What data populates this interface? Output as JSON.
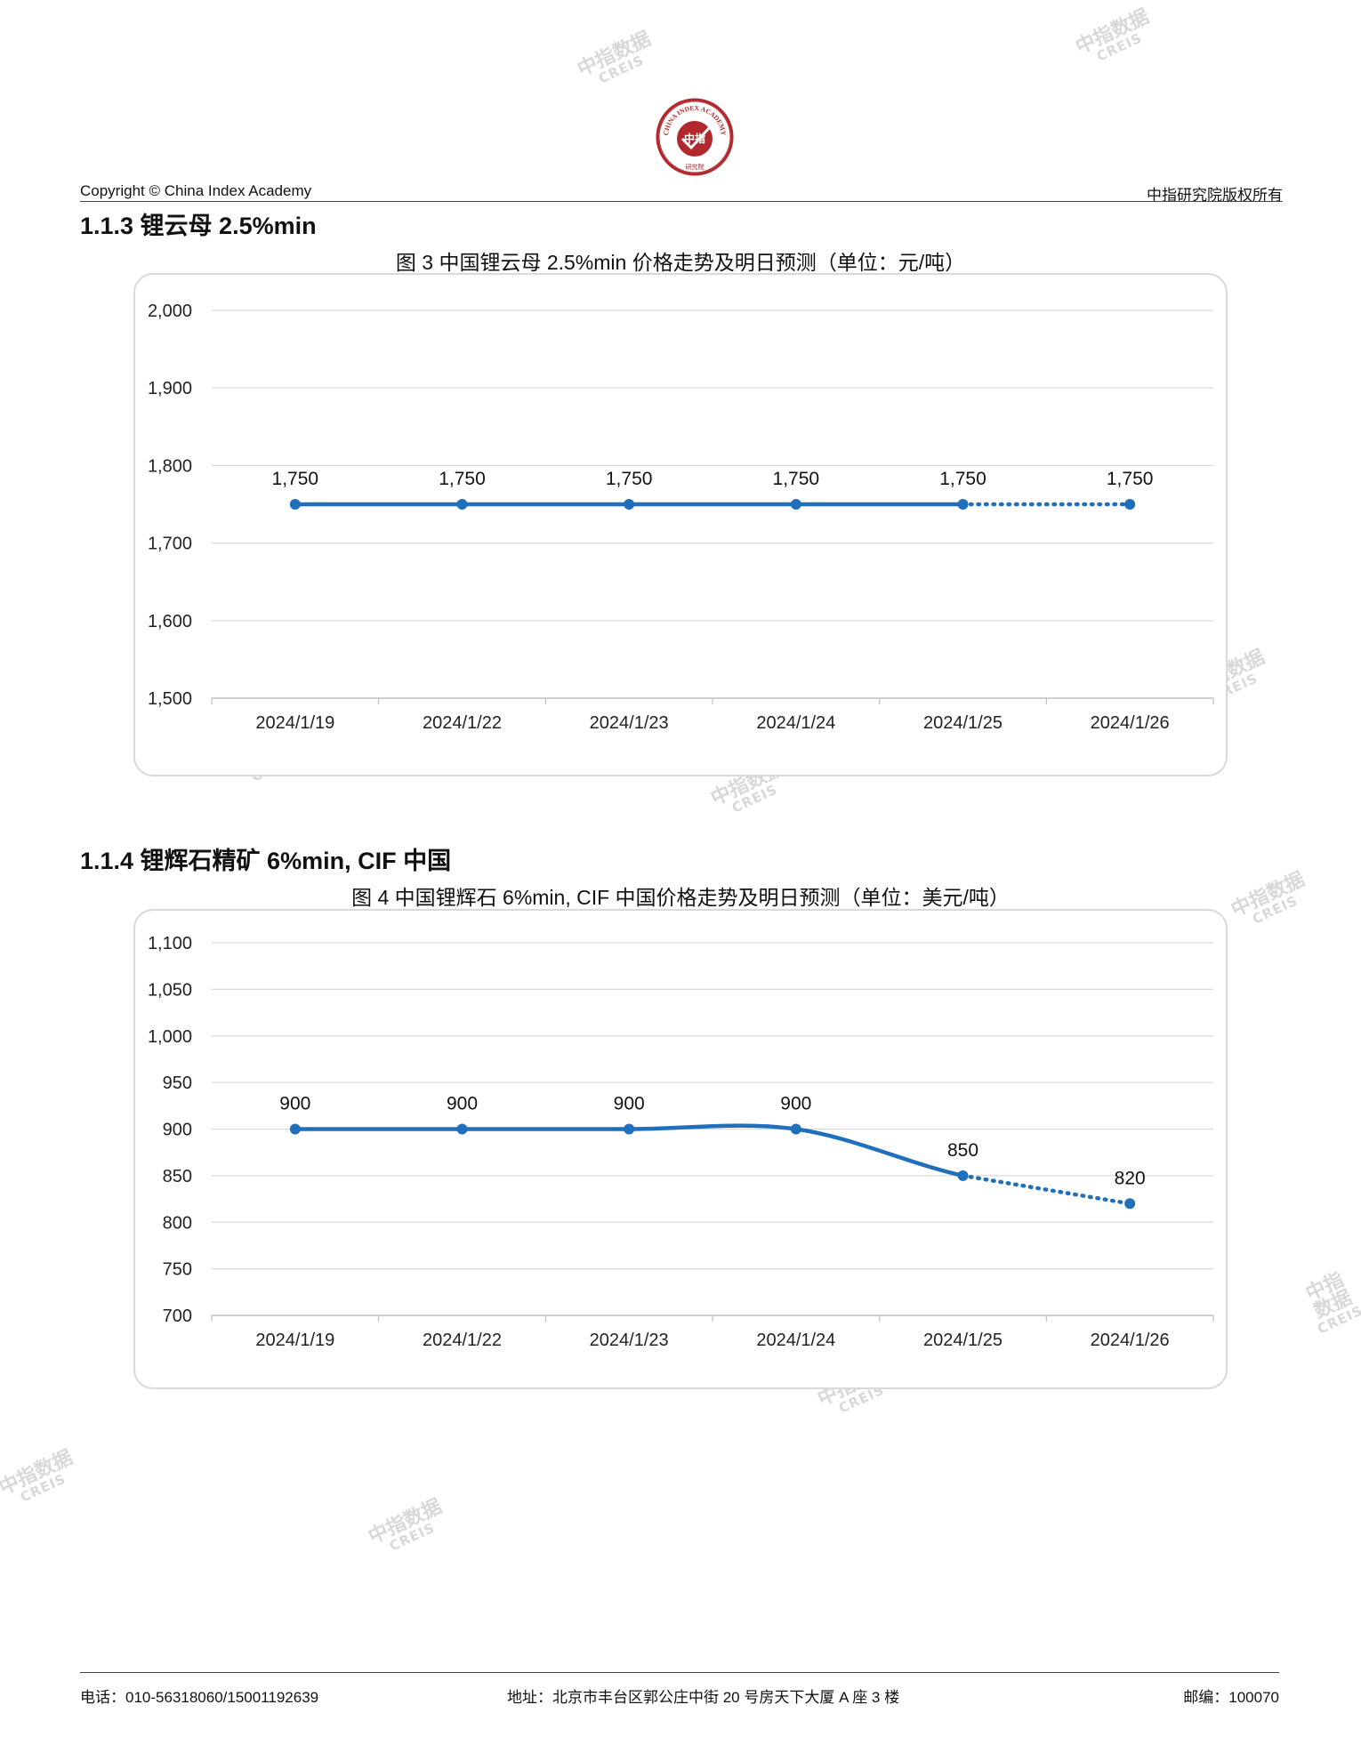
{
  "header": {
    "copyright": "Copyright © China Index Academy",
    "rights": "中指研究院版权所有",
    "logo_top": "CHINA INDEX ACADEMY",
    "logo_center": "中指",
    "logo_bottom": "研究院"
  },
  "watermark": {
    "line1": "中指数据",
    "line2": "CREIS"
  },
  "sections": [
    {
      "title": "1.1.3 锂云母 2.5%min",
      "chart_title": "图 3 中国锂云母 2.5%min 价格走势及明日预测（单位：元/吨）"
    },
    {
      "title": "1.1.4 锂辉石精矿 6%min, CIF 中国",
      "chart_title": "图 4 中国锂辉石 6%min, CIF 中国价格走势及明日预测（单位：美元/吨）"
    }
  ],
  "chart_data": [
    {
      "type": "line",
      "title": "图 3 中国锂云母 2.5%min 价格走势及明日预测（单位：元/吨）",
      "categories": [
        "2024/1/19",
        "2024/1/22",
        "2024/1/23",
        "2024/1/24",
        "2024/1/25",
        "2024/1/26"
      ],
      "values": [
        1750,
        1750,
        1750,
        1750,
        1750,
        1750
      ],
      "value_labels": [
        "1,750",
        "1,750",
        "1,750",
        "1,750",
        "1,750",
        "1,750"
      ],
      "forecast_from_index": 4,
      "smooth": false,
      "ylim": [
        1500,
        2000
      ],
      "yticks": [
        1500,
        1600,
        1700,
        1800,
        1900,
        2000
      ],
      "ytick_labels": [
        "1,500",
        "1,600",
        "1,700",
        "1,800",
        "1,900",
        "2,000"
      ],
      "grid": true,
      "color": "#1f6fba"
    },
    {
      "type": "line",
      "title": "图 4 中国锂辉石 6%min, CIF 中国价格走势及明日预测（单位：美元/吨）",
      "categories": [
        "2024/1/19",
        "2024/1/22",
        "2024/1/23",
        "2024/1/24",
        "2024/1/25",
        "2024/1/26"
      ],
      "values": [
        900,
        900,
        900,
        900,
        850,
        820
      ],
      "value_labels": [
        "900",
        "900",
        "900",
        "900",
        "850",
        "820"
      ],
      "forecast_from_index": 4,
      "smooth": true,
      "ylim": [
        700,
        1100
      ],
      "yticks": [
        700,
        750,
        800,
        850,
        900,
        950,
        1000,
        1050,
        1100
      ],
      "ytick_labels": [
        "700",
        "750",
        "800",
        "850",
        "900",
        "950",
        "1,000",
        "1,050",
        "1,100"
      ],
      "grid": true,
      "color": "#1f6fba"
    }
  ],
  "footer": {
    "phone": "电话：010-56318060/15001192639",
    "address": "地址：北京市丰台区郭公庄中街 20 号房天下大厦 A 座 3 楼",
    "postcode": "邮编：100070"
  }
}
